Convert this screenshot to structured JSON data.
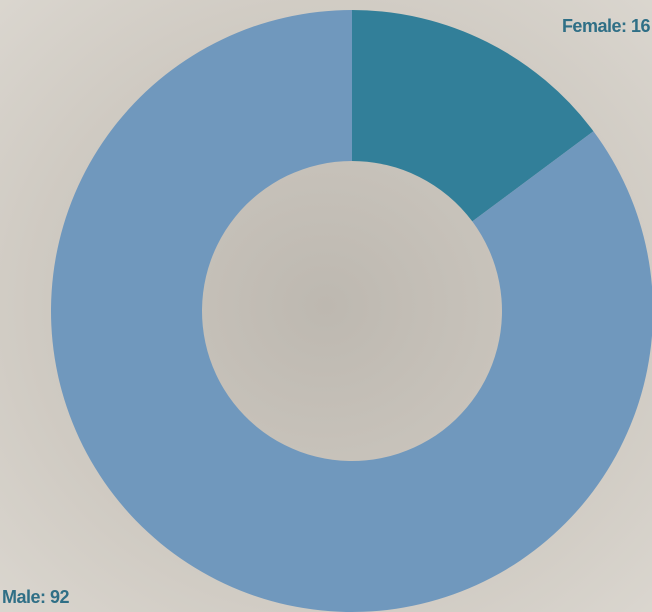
{
  "chart_data": {
    "type": "donut",
    "values": [
      16,
      92
    ],
    "value_labels": [
      "Female: 16",
      "Male: 92"
    ],
    "colors": [
      "#327f99",
      "#7098bd"
    ]
  }
}
